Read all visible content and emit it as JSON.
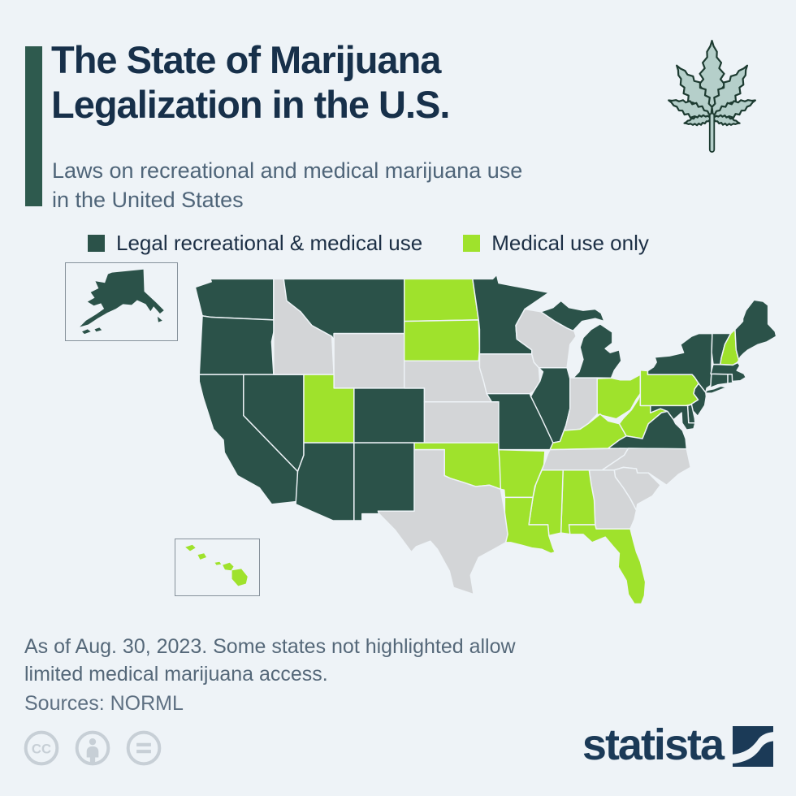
{
  "page": {
    "background_color": "#eef3f7"
  },
  "header": {
    "title_line1": "The State of Marijuana",
    "title_line2": "Legalization in the U.S.",
    "subtitle_line1": "Laws on recreational and medical marijuana use",
    "subtitle_line2": "in the United States",
    "accent_bar_color": "#2e5a4e",
    "title_color": "#17304a"
  },
  "legend": {
    "items": [
      {
        "label": "Legal recreational & medical use",
        "color": "#2b5249"
      },
      {
        "label": "Medical use only",
        "color": "#9fe22c"
      }
    ],
    "no_program_color": "#d3d5d7"
  },
  "decoration": {
    "leaf_icon": "cannabis-leaf-icon",
    "leaf_fill": "#b5cfca",
    "leaf_outline": "#1d3b31"
  },
  "map": {
    "insets": [
      {
        "name": "Alaska"
      },
      {
        "name": "Hawaii"
      }
    ],
    "border_color": "#eef3f7"
  },
  "chart_data": {
    "type": "choropleth",
    "title": "The State of Marijuana Legalization in the U.S.",
    "subtitle": "Laws on recreational and medical marijuana use in the United States",
    "note": "As of Aug. 30, 2023. Some states not highlighted allow limited medical marijuana access.",
    "source": "NORML",
    "categories": [
      {
        "label": "Legal recreational & medical use",
        "color": "#2b5249"
      },
      {
        "label": "Medical use only",
        "color": "#9fe22c"
      },
      {
        "label": "Not highlighted (limited or no access)",
        "color": "#d3d5d7"
      }
    ],
    "recreational_medical_states": [
      "Alaska",
      "Arizona",
      "California",
      "Colorado",
      "Connecticut",
      "Delaware",
      "Illinois",
      "Maine",
      "Maryland",
      "Massachusetts",
      "Michigan",
      "Minnesota",
      "Missouri",
      "Montana",
      "Nevada",
      "New Jersey",
      "New Mexico",
      "New York",
      "Oregon",
      "Rhode Island",
      "Vermont",
      "Virginia",
      "Washington"
    ],
    "medical_only_states": [
      "Alabama",
      "Arkansas",
      "Florida",
      "Hawaii",
      "Kentucky",
      "Louisiana",
      "Mississippi",
      "New Hampshire",
      "North Dakota",
      "Ohio",
      "Oklahoma",
      "Pennsylvania",
      "South Dakota",
      "Utah",
      "West Virginia"
    ],
    "no_broad_program_states": [
      "Georgia",
      "Idaho",
      "Indiana",
      "Iowa",
      "Kansas",
      "Nebraska",
      "North Carolina",
      "South Carolina",
      "Tennessee",
      "Texas",
      "Wisconsin",
      "Wyoming"
    ]
  },
  "footer": {
    "note_line1": "As of Aug. 30, 2023. Some states not highlighted allow",
    "note_line2": "limited medical marijuana access.",
    "source_label": "Sources: NORML"
  },
  "branding": {
    "logo_text": "statista",
    "logo_color": "#1b3a57"
  },
  "license": {
    "icons": [
      "cc-icon",
      "attribution-person-icon",
      "equals-icon"
    ],
    "color": "#c7cfd6"
  }
}
